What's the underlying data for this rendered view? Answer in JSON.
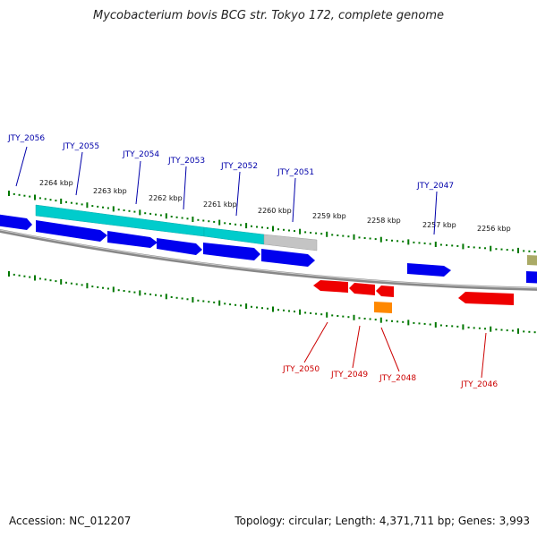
{
  "title": "Mycobacterium bovis BCG str. Tokyo 172, complete genome",
  "footer": {
    "accession": "Accession: NC_012207",
    "summary": "Topology: circular; Length: 4,371,711 bp; Genes: 3,993"
  },
  "scale_labels": [
    "2264 kbp",
    "2263 kbp",
    "2262 kbp",
    "2261 kbp",
    "2260 kbp",
    "2259 kbp",
    "2258 kbp",
    "2257 kbp",
    "2256 kbp"
  ],
  "genes": {
    "top": [
      "JTY_2056",
      "JTY_2055",
      "JTY_2054",
      "JTY_2053",
      "JTY_2052",
      "JTY_2051",
      "JTY_2047"
    ],
    "bottom": [
      "JTY_2050",
      "JTY_2049",
      "JTY_2048",
      "JTY_2046"
    ]
  },
  "colors": {
    "forward_gene": "#0000ee",
    "reverse_gene": "#ee0000",
    "cds_cyan": "#00cccc",
    "cds_grey": "#bbbbbb",
    "orange_gene": "#ff8800",
    "olive_gene": "#aaaa66",
    "tick": "#007700",
    "backbone": "#777777",
    "forward_label": "#0000aa",
    "reverse_label": "#cc0000"
  }
}
